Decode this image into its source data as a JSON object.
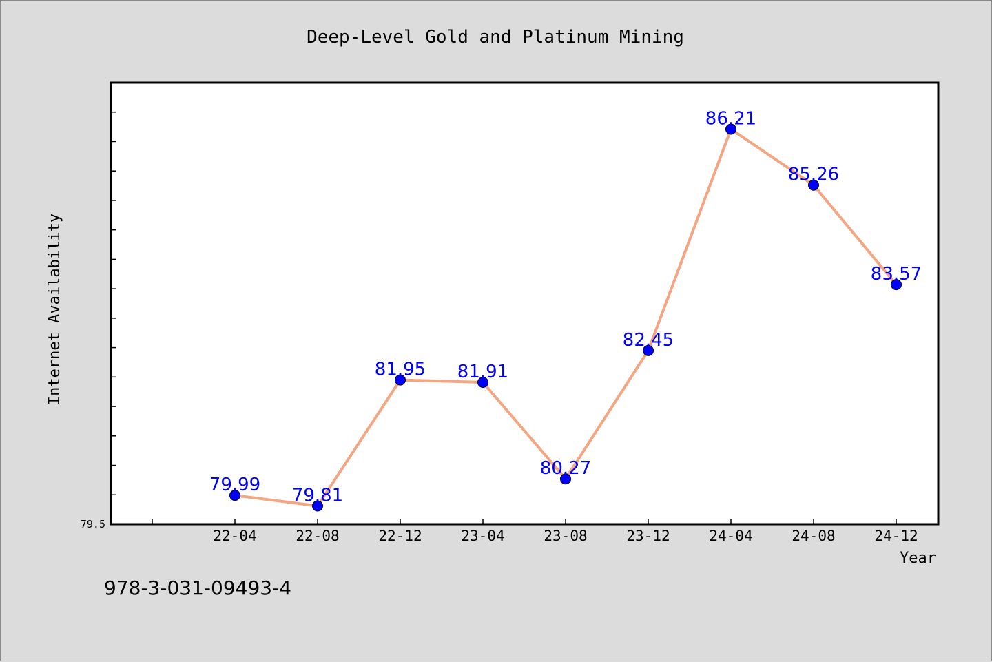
{
  "chart_data": {
    "type": "line",
    "title": "Deep-Level Gold and Platinum Mining",
    "xlabel": "Year",
    "ylabel": "Internet Availability",
    "categories": [
      "22-04",
      "22-08",
      "22-12",
      "23-04",
      "23-08",
      "23-12",
      "24-04",
      "24-08",
      "24-12"
    ],
    "series": [
      {
        "values": [
          79.99,
          79.81,
          81.95,
          81.91,
          80.27,
          82.45,
          86.21,
          85.26,
          83.57
        ]
      }
    ],
    "data_labels": [
      "79.99",
      "79.81",
      "81.95",
      "81.91",
      "80.27",
      "82.45",
      "86.21",
      "85.26",
      "83.57"
    ],
    "ylim": [
      79.5,
      87.0
    ],
    "ytick_labels": [
      "79.5"
    ],
    "grid": false,
    "line_color": "#f4a582",
    "marker_color": "#0000ff",
    "label_color": "#0000ff",
    "plot_background": "#ffffff",
    "page_background": "#dcdcdc"
  },
  "footer": {
    "isbn": "978-3-031-09493-4"
  }
}
